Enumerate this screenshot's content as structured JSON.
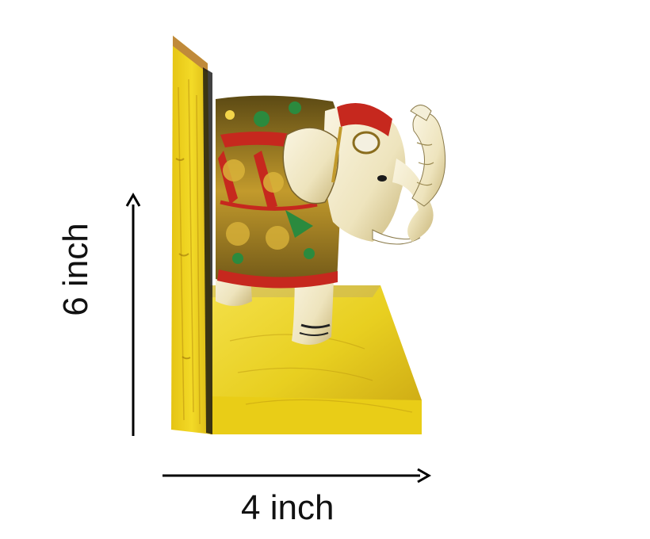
{
  "dimensions": {
    "height_label": "6 inch",
    "width_label": "4 inch"
  },
  "colors": {
    "wood_yellow": "#f2dc1f",
    "wood_dark": "#c9a412",
    "elephant_cream": "#f1ead0",
    "brass_gold": "#b78d25",
    "enamel_red": "#c6281e",
    "enamel_green": "#2b8a3e",
    "arrow_black": "#000000"
  },
  "icons": {
    "product": "elephant-bookend-image",
    "height_arrow": "arrow-up-icon",
    "width_arrow": "arrow-right-icon"
  }
}
